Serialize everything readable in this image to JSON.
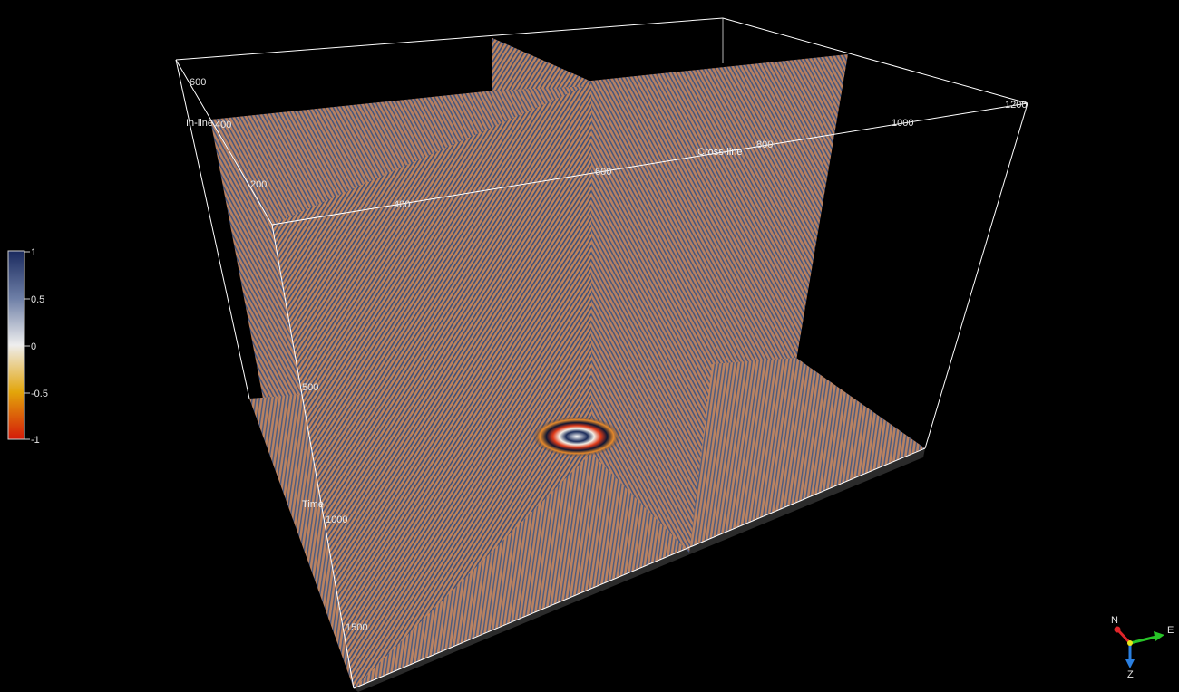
{
  "scene": {
    "background": "#000000",
    "slice_tint": "#a87a5a",
    "stripe_light": "#c98c62",
    "stripe_dark": "#3b4f7c"
  },
  "axes": {
    "inline_label": "In-line",
    "crossline_label": "Cross-line",
    "time_label": "Time",
    "inline_ticks": [
      "600",
      "400",
      "200"
    ],
    "crossline_ticks": [
      "400",
      "600",
      "800",
      "1000",
      "1200"
    ],
    "time_ticks": [
      "500",
      "1000",
      "1500"
    ]
  },
  "colorbar": {
    "ticks": [
      "1",
      "0.5",
      "0",
      "-0.5",
      "-1"
    ],
    "colors": [
      "#1a2a5e",
      "#6d7ea6",
      "#e8e8e8",
      "#e3a50a",
      "#d41a0a"
    ]
  },
  "orientation": {
    "north_label": "N",
    "east_label": "E",
    "z_label": "Z",
    "north_color": "#e0252a",
    "east_color": "#28c428",
    "z_color": "#2a7fe0"
  }
}
